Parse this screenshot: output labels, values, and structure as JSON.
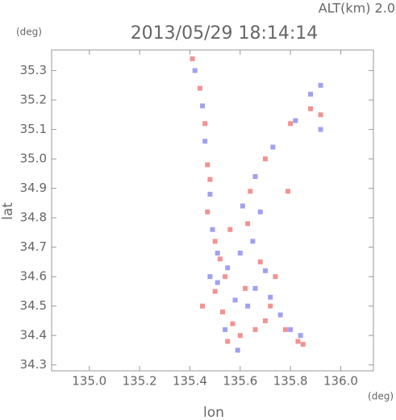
{
  "chart_data": {
    "type": "scatter",
    "title": "2013/05/29 18:14:14",
    "subtitle": "ALT(km) 2.0",
    "y_unit": "(deg)",
    "x_unit": "(deg)",
    "x_label": "lon",
    "y_label": "lat",
    "xlim": [
      134.85,
      136.13
    ],
    "ylim": [
      34.28,
      35.37
    ],
    "xticks": [
      {
        "value": 135,
        "label": "135.0"
      },
      135.2,
      135.4,
      135.6,
      135.8,
      {
        "value": 136,
        "label": "136.0"
      }
    ],
    "yticks": [
      34.3,
      34.4,
      34.5,
      34.6,
      34.7,
      34.8,
      34.9,
      {
        "value": 35,
        "label": "35.0"
      },
      35.1,
      35.2,
      35.3
    ],
    "series": [
      {
        "color": "#ee8080",
        "x": [
          135.41,
          135.44,
          135.46,
          135.47,
          135.48,
          135.47,
          135.5,
          135.52,
          135.54,
          135.5,
          135.53,
          135.57,
          135.6,
          135.55,
          135.66,
          135.7,
          135.72,
          135.62,
          135.68,
          135.74,
          135.78,
          135.83,
          135.85,
          135.64,
          135.7,
          135.8,
          135.88,
          135.92,
          135.45,
          135.56,
          135.63,
          135.79
        ],
        "values": [
          35.34,
          35.24,
          35.12,
          34.98,
          34.93,
          34.82,
          34.72,
          34.66,
          34.6,
          34.55,
          34.48,
          34.44,
          34.4,
          34.38,
          34.42,
          34.45,
          34.5,
          34.56,
          34.65,
          34.6,
          34.42,
          34.38,
          34.37,
          34.89,
          35.0,
          35.12,
          35.17,
          35.15,
          34.5,
          34.76,
          34.78,
          34.89
        ]
      },
      {
        "color": "#9090ee",
        "x": [
          135.42,
          135.45,
          135.46,
          135.48,
          135.49,
          135.51,
          135.55,
          135.48,
          135.51,
          135.58,
          135.63,
          135.66,
          135.7,
          135.6,
          135.65,
          135.72,
          135.76,
          135.8,
          135.84,
          135.54,
          135.59,
          135.66,
          135.73,
          135.82,
          135.88,
          135.92,
          135.92,
          135.61,
          135.68
        ],
        "values": [
          35.3,
          35.18,
          35.06,
          34.88,
          34.76,
          34.68,
          34.63,
          34.6,
          34.58,
          34.52,
          34.5,
          34.56,
          34.62,
          34.68,
          34.72,
          34.53,
          34.47,
          34.42,
          34.4,
          34.42,
          34.35,
          34.94,
          35.04,
          35.13,
          35.22,
          35.25,
          35.1,
          34.84,
          34.82
        ]
      }
    ]
  }
}
